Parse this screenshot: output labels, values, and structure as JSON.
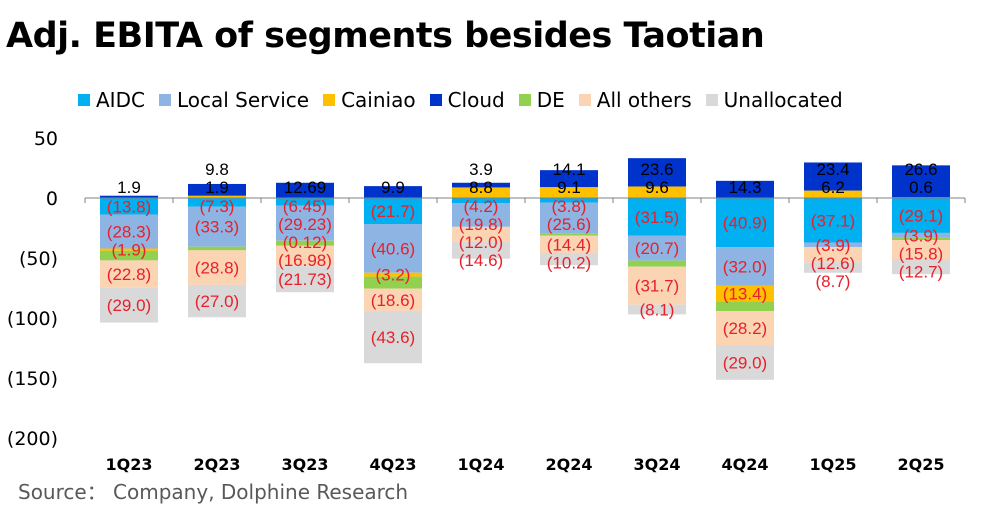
{
  "chart_data": {
    "type": "bar",
    "stacked": true,
    "title": "Adj. EBITA of segments besides Taotian",
    "source": "Source： Company, Dolphine Research",
    "ylim": [
      -200,
      50
    ],
    "yticks": [
      50,
      0,
      -50,
      -100,
      -150,
      -200
    ],
    "ytick_labels": [
      "50",
      "0",
      "(50)",
      "(100)",
      "(150)",
      "(200)"
    ],
    "categories": [
      "1Q23",
      "2Q23",
      "3Q23",
      "4Q23",
      "1Q24",
      "2Q24",
      "3Q24",
      "4Q24",
      "1Q25",
      "2Q25"
    ],
    "legend_position": "top",
    "series": [
      {
        "name": "AIDC",
        "color": "#00b0f0",
        "values": [
          -13.8,
          -7.3,
          -6.45,
          -21.7,
          -4.2,
          -3.8,
          -31.5,
          -40.9,
          -37.1,
          -29.1
        ],
        "labels": [
          "(13.8)",
          "(7.3)",
          "(6.45)",
          "(21.7)",
          "(4.2)",
          "(3.8)",
          "(31.5)",
          "(40.9)",
          "(37.1)",
          "(29.1)"
        ]
      },
      {
        "name": "Local Service",
        "color": "#8eb4e3",
        "values": [
          -28.3,
          -33.3,
          -29.23,
          -40.6,
          -19.8,
          -25.6,
          -20.7,
          -32.0,
          -3.9,
          -3.9
        ],
        "labels": [
          "(28.3)",
          "(33.3)",
          "(29.23)",
          "(40.6)",
          "(19.8)",
          "(25.6)",
          "(20.7)",
          "(32.0)",
          "(3.9)",
          "(3.9)"
        ]
      },
      {
        "name": "Cainiao",
        "color": "#ffc000",
        "values": [
          -1.9,
          1.9,
          -0.12,
          -3.2,
          8.8,
          9.1,
          9.6,
          -13.4,
          6.2,
          0.6
        ],
        "labels": [
          "(1.9)",
          "1.9",
          "(0.12)",
          "(3.2)",
          "8.8",
          "9.1",
          "9.6",
          "(13.4)",
          "6.2",
          "0.6"
        ]
      },
      {
        "name": "Cloud",
        "color": "#0033cc",
        "values": [
          1.9,
          9.8,
          12.69,
          9.9,
          3.9,
          14.1,
          23.6,
          14.3,
          23.4,
          26.6
        ],
        "labels": [
          "1.9",
          "9.8",
          "12.69",
          "9.9",
          "3.9",
          "14.1",
          "23.6",
          "14.3",
          "23.4",
          "26.6"
        ]
      },
      {
        "name": "DE",
        "color": "#92d050",
        "values": [
          -8,
          -3,
          -4,
          -10,
          0,
          -2,
          -5,
          -8,
          0,
          -2
        ],
        "labels": [
          null,
          null,
          null,
          null,
          null,
          null,
          null,
          null,
          null,
          null
        ]
      },
      {
        "name": "All others",
        "color": "#fbd4b4",
        "values": [
          -22.8,
          -28.8,
          -16.98,
          -18.6,
          -12.0,
          -14.4,
          -31.7,
          -28.2,
          -12.6,
          -15.8
        ],
        "labels": [
          "(22.8)",
          "(28.8)",
          "(16.98)",
          "(18.6)",
          "(12.0)",
          "(14.4)",
          "(31.7)",
          "(28.2)",
          "(12.6)",
          "(15.8)"
        ]
      },
      {
        "name": "Unallocated",
        "color": "#d9d9d9",
        "values": [
          -29.0,
          -27.0,
          -21.73,
          -43.6,
          -14.6,
          -10.2,
          -8.1,
          -29.0,
          -8.7,
          -12.7
        ],
        "labels": [
          "(29.0)",
          "(27.0)",
          "(21.73)",
          "(43.6)",
          "(14.6)",
          "(10.2)",
          "(8.1)",
          "(29.0)",
          "(8.7)",
          "(12.7)"
        ]
      }
    ]
  }
}
